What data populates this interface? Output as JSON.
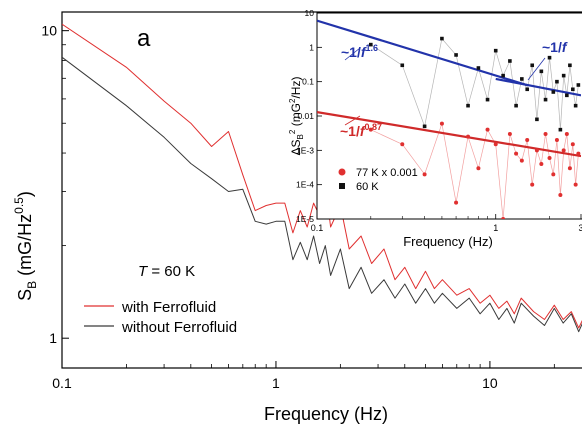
{
  "chart_data": [
    {
      "type": "line",
      "panel_label": "a",
      "x_scale": "log",
      "y_scale": "log",
      "xlim": [
        0.1,
        30
      ],
      "ylim": [
        0.8,
        11.5
      ],
      "xlabel": "Frequency (Hz)",
      "ylabel": "S",
      "ylabel_sub": "B",
      "ylabel_unit_open": " (mG/Hz",
      "ylabel_unit_sup": "0.5",
      "ylabel_unit_close": ")",
      "x_ticks": [
        {
          "value": 0.1,
          "label": "0.1"
        },
        {
          "value": 1,
          "label": "1"
        },
        {
          "value": 10,
          "label": "10"
        }
      ],
      "y_ticks": [
        {
          "value": 1,
          "label": "1"
        },
        {
          "value": 10,
          "label": "10"
        }
      ],
      "annotation_italic": "T",
      "annotation_rest": " = 60 K",
      "series": [
        {
          "name": "with Ferrofluid",
          "color": "#e03030",
          "x": [
            0.1,
            0.2,
            0.3,
            0.4,
            0.5,
            0.6,
            0.7,
            0.8,
            0.9,
            1.0,
            1.1,
            1.2,
            1.3,
            1.4,
            1.5,
            1.6,
            1.7,
            1.8,
            2.0,
            2.2,
            2.5,
            2.8,
            3.2,
            3.6,
            4.0,
            4.5,
            5.0,
            5.5,
            6.0,
            7.0,
            8.0,
            9.0,
            10,
            11,
            12,
            13,
            14,
            16,
            18,
            20,
            22,
            24,
            26,
            28,
            30
          ],
          "y": [
            10.5,
            7.6,
            5.9,
            5.0,
            4.2,
            4.7,
            3.4,
            2.6,
            2.7,
            2.75,
            2.75,
            2.2,
            2.6,
            2.3,
            2.75,
            2.5,
            3.2,
            2.3,
            2.7,
            1.95,
            2.15,
            1.75,
            1.95,
            1.55,
            1.7,
            1.45,
            1.65,
            1.45,
            1.55,
            1.38,
            1.45,
            1.3,
            1.38,
            1.25,
            1.32,
            1.2,
            1.35,
            1.22,
            1.15,
            1.28,
            1.15,
            1.22,
            1.08,
            1.2,
            1.1
          ]
        },
        {
          "name": "without Ferrofluid",
          "color": "#3a3a3a",
          "x": [
            0.1,
            0.2,
            0.3,
            0.4,
            0.5,
            0.6,
            0.7,
            0.8,
            0.9,
            1.0,
            1.1,
            1.2,
            1.3,
            1.4,
            1.5,
            1.6,
            1.7,
            1.8,
            2.0,
            2.2,
            2.5,
            2.8,
            3.2,
            3.6,
            4.0,
            4.5,
            5.0,
            5.5,
            6.0,
            7.0,
            8.0,
            9.0,
            10,
            11,
            12,
            13,
            14,
            16,
            18,
            20,
            22,
            24,
            26,
            28,
            30
          ],
          "y": [
            8.2,
            5.7,
            4.5,
            3.7,
            3.3,
            3.0,
            3.05,
            2.4,
            2.35,
            2.4,
            2.4,
            1.8,
            2.05,
            1.8,
            2.15,
            1.75,
            2.0,
            1.6,
            1.95,
            1.45,
            1.7,
            1.4,
            1.55,
            1.35,
            1.5,
            1.3,
            1.45,
            1.3,
            1.4,
            1.25,
            1.35,
            1.2,
            1.3,
            1.15,
            1.25,
            1.12,
            1.3,
            1.18,
            1.1,
            1.25,
            1.12,
            1.2,
            1.05,
            1.18,
            1.08
          ]
        }
      ],
      "legend_placement": "bottom-left"
    },
    {
      "type": "scatter",
      "inset": true,
      "x_scale": "log",
      "y_scale": "log",
      "xlim": [
        0.1,
        3
      ],
      "ylim": [
        1e-05,
        10
      ],
      "xlabel": "Frequency (Hz)",
      "ylabel_prefix": "ΔS",
      "ylabel_sub": "B",
      "ylabel_sup": "2",
      "ylabel_open": " (mG",
      "ylabel_mid_sup": "2",
      "ylabel_close": "/Hz)",
      "x_ticks": [
        {
          "value": 0.1,
          "label": "0.1"
        },
        {
          "value": 1,
          "label": "1"
        },
        {
          "value": 3,
          "label": "3"
        }
      ],
      "y_ticks": [
        {
          "value": 10,
          "label": "10"
        },
        {
          "value": 1,
          "label": "1"
        },
        {
          "value": 0.1,
          "label": "0.1"
        },
        {
          "value": 0.01,
          "label": "0.01"
        },
        {
          "value": 0.001,
          "label": "1E-3"
        },
        {
          "value": 0.0001,
          "label": "1E-4"
        },
        {
          "value": 1e-05,
          "label": "1E-5"
        }
      ],
      "series": [
        {
          "name": "77 K x 0.001",
          "color": "#e03030",
          "marker": "circle",
          "x": [
            0.2,
            0.3,
            0.4,
            0.5,
            0.6,
            0.7,
            0.8,
            0.9,
            1.0,
            1.1,
            1.2,
            1.3,
            1.4,
            1.5,
            1.6,
            1.7,
            1.8,
            1.9,
            2.0,
            2.1,
            2.2,
            2.3,
            2.4,
            2.5,
            2.6,
            2.7,
            2.8,
            2.9
          ],
          "y": [
            0.004,
            0.0015,
            0.0002,
            0.006,
            3e-05,
            0.0025,
            0.0003,
            0.004,
            0.0015,
            1e-05,
            0.003,
            0.0008,
            0.0005,
            0.002,
            0.0001,
            0.001,
            0.0004,
            0.003,
            0.0006,
            0.0002,
            0.002,
            5e-05,
            0.001,
            0.003,
            0.0003,
            0.0015,
            0.0001,
            0.0008
          ]
        },
        {
          "name": "60 K",
          "color": "#111111",
          "marker": "square",
          "x": [
            0.2,
            0.3,
            0.4,
            0.5,
            0.6,
            0.7,
            0.8,
            0.9,
            1.0,
            1.1,
            1.2,
            1.3,
            1.4,
            1.5,
            1.6,
            1.7,
            1.8,
            1.9,
            2.0,
            2.1,
            2.2,
            2.3,
            2.4,
            2.5,
            2.6,
            2.7,
            2.8,
            2.9
          ],
          "y": [
            1.2,
            0.3,
            0.005,
            1.8,
            0.6,
            0.02,
            0.25,
            0.03,
            0.8,
            0.15,
            0.4,
            0.02,
            0.12,
            0.06,
            0.3,
            0.008,
            0.2,
            0.03,
            0.5,
            0.05,
            0.1,
            0.004,
            0.15,
            0.04,
            0.3,
            0.06,
            0.02,
            0.08
          ]
        }
      ],
      "fits": [
        {
          "label_prefix": "~1/",
          "label_italic": "f",
          "label_sup": "1.6",
          "color": "#2233aa",
          "x": [
            0.1,
            1.5
          ],
          "y": [
            6,
            0.079
          ]
        },
        {
          "label_prefix": "~1/",
          "label_italic": "f",
          "label_sup": "",
          "color": "#2233aa",
          "x": [
            1.0,
            3.0
          ],
          "y": [
            0.12,
            0.04
          ]
        },
        {
          "label_prefix": "~1/",
          "label_italic": "f",
          "label_sup": "0.87",
          "color": "#d02a2a",
          "x": [
            0.1,
            3.0
          ],
          "y": [
            0.013,
            0.00068
          ]
        }
      ],
      "legend_placement": "bottom-left"
    }
  ]
}
